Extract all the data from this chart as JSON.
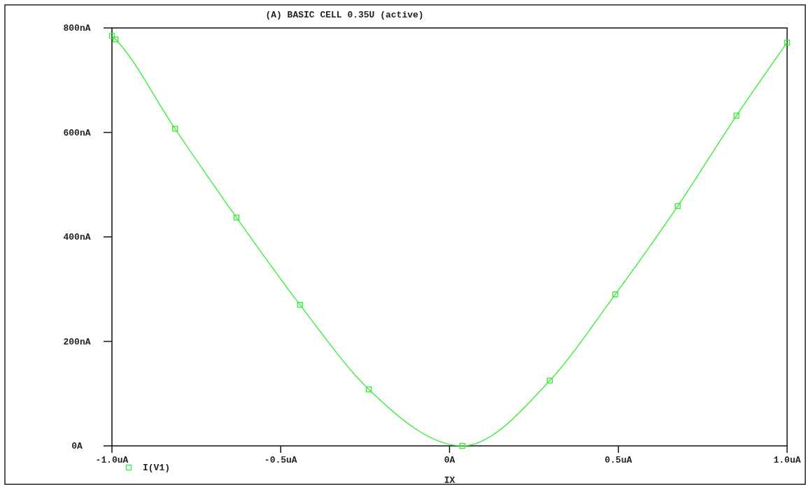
{
  "chart_data": {
    "type": "line",
    "title": "(A) BASIC CELL 0.35U (active)",
    "xlabel": "IX",
    "x": [
      -1.0,
      -0.989,
      -0.813,
      -0.631,
      -0.443,
      -0.239,
      0.038,
      0.297,
      0.491,
      0.676,
      0.85,
      1.0
    ],
    "series": [
      {
        "name": "I(V1)",
        "color": "#33ee33",
        "values": [
          785,
          778,
          607,
          437,
          270,
          108,
          0,
          125,
          290,
          459,
          632,
          772
        ]
      }
    ],
    "xlim": [
      -1,
      1
    ],
    "xticks": [
      {
        "value": -1,
        "label": "-1.0uA"
      },
      {
        "value": -0.5,
        "label": "-0.5uA"
      },
      {
        "value": 0,
        "label": "0A"
      },
      {
        "value": 0.5,
        "label": "0.5uA"
      },
      {
        "value": 1,
        "label": "1.0uA"
      }
    ],
    "ylim": [
      0,
      800
    ],
    "yticks": [
      {
        "value": 0,
        "label": "0A"
      },
      {
        "value": 200,
        "label": "200nA"
      },
      {
        "value": 400,
        "label": "400nA"
      },
      {
        "value": 600,
        "label": "600nA"
      },
      {
        "value": 800,
        "label": "800nA"
      }
    ],
    "grid": false,
    "legend": "bottom left",
    "marker": "square",
    "line_style": "solid"
  }
}
